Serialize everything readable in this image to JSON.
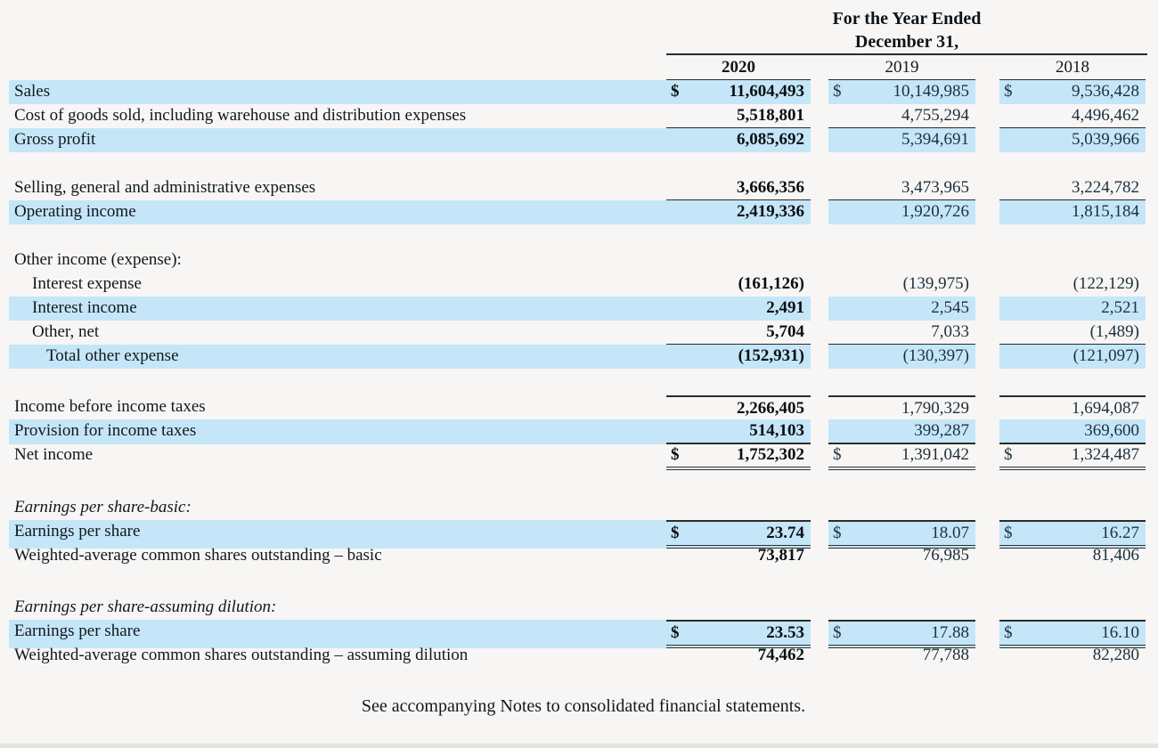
{
  "header": {
    "line1": "For the Year Ended",
    "line2": "December 31,"
  },
  "table": {
    "currency": "$",
    "columns": [
      "2020",
      "2019",
      "2018"
    ],
    "rows": [
      {
        "label": "Sales",
        "hl": true,
        "dollar": true,
        "values": [
          "11,604,493",
          "10,149,985",
          "9,536,428"
        ]
      },
      {
        "label": "Cost of goods sold, including warehouse and distribution expenses",
        "values": [
          "5,518,801",
          "4,755,294",
          "4,496,462"
        ],
        "underline": "single"
      },
      {
        "label": "Gross profit",
        "hl": true,
        "values": [
          "6,085,692",
          "5,394,691",
          "5,039,966"
        ]
      },
      {
        "type": "spacer",
        "h": 27
      },
      {
        "label": "Selling, general and administrative expenses",
        "values": [
          "3,666,356",
          "3,473,965",
          "3,224,782"
        ],
        "underline": "single"
      },
      {
        "label": "Operating income",
        "hl": true,
        "values": [
          "2,419,336",
          "1,920,726",
          "1,815,184"
        ]
      },
      {
        "type": "spacer",
        "h": 27
      },
      {
        "label": "Other income (expense):"
      },
      {
        "label": "Interest expense",
        "indent": 1,
        "values": [
          "(161,126)",
          "(139,975)",
          "(122,129)"
        ]
      },
      {
        "label": "Interest income",
        "indent": 1,
        "hl": true,
        "values": [
          "2,491",
          "2,545",
          "2,521"
        ]
      },
      {
        "label": "Other, net",
        "indent": 1,
        "values": [
          "5,704",
          "7,033",
          "(1,489)"
        ],
        "underline": "single"
      },
      {
        "label": "Total other expense",
        "indent": 2,
        "hl": true,
        "values": [
          "(152,931)",
          "(130,397)",
          "(121,097)"
        ]
      },
      {
        "type": "spacer",
        "h": 30
      },
      {
        "label": "Income before income taxes",
        "topline": true,
        "values": [
          "2,266,405",
          "1,790,329",
          "1,694,087"
        ]
      },
      {
        "label": "Provision for income taxes",
        "hl": true,
        "values": [
          "514,103",
          "399,287",
          "369,600"
        ],
        "underline": "single"
      },
      {
        "label": "Net income",
        "dollar": true,
        "values": [
          "1,752,302",
          "1,391,042",
          "1,324,487"
        ],
        "underline": "double"
      },
      {
        "type": "spacer",
        "h": 32
      },
      {
        "label": "Earnings per share-basic:",
        "italic": true
      },
      {
        "label": "Earnings per share",
        "hl": true,
        "dollar": true,
        "topline": true,
        "values": [
          "23.74",
          "18.07",
          "16.27"
        ],
        "underline": "double"
      },
      {
        "label": "Weighted-average common shares outstanding – basic",
        "values": [
          "73,817",
          "76,985",
          "81,406"
        ]
      },
      {
        "type": "spacer",
        "h": 31
      },
      {
        "label": "Earnings per share-assuming dilution:",
        "italic": true
      },
      {
        "label": "Earnings per share",
        "hl": true,
        "dollar": true,
        "topline": true,
        "values": [
          "23.53",
          "17.88",
          "16.10"
        ],
        "underline": "double"
      },
      {
        "label": "Weighted-average common shares outstanding – assuming dilution",
        "values": [
          "74,462",
          "77,788",
          "82,280"
        ]
      }
    ]
  },
  "footer": "See accompanying Notes to consolidated financial statements.",
  "colors": {
    "highlight": "#c5e6f8",
    "rule": "#2b2b2b",
    "background": "#f7f6f4"
  }
}
